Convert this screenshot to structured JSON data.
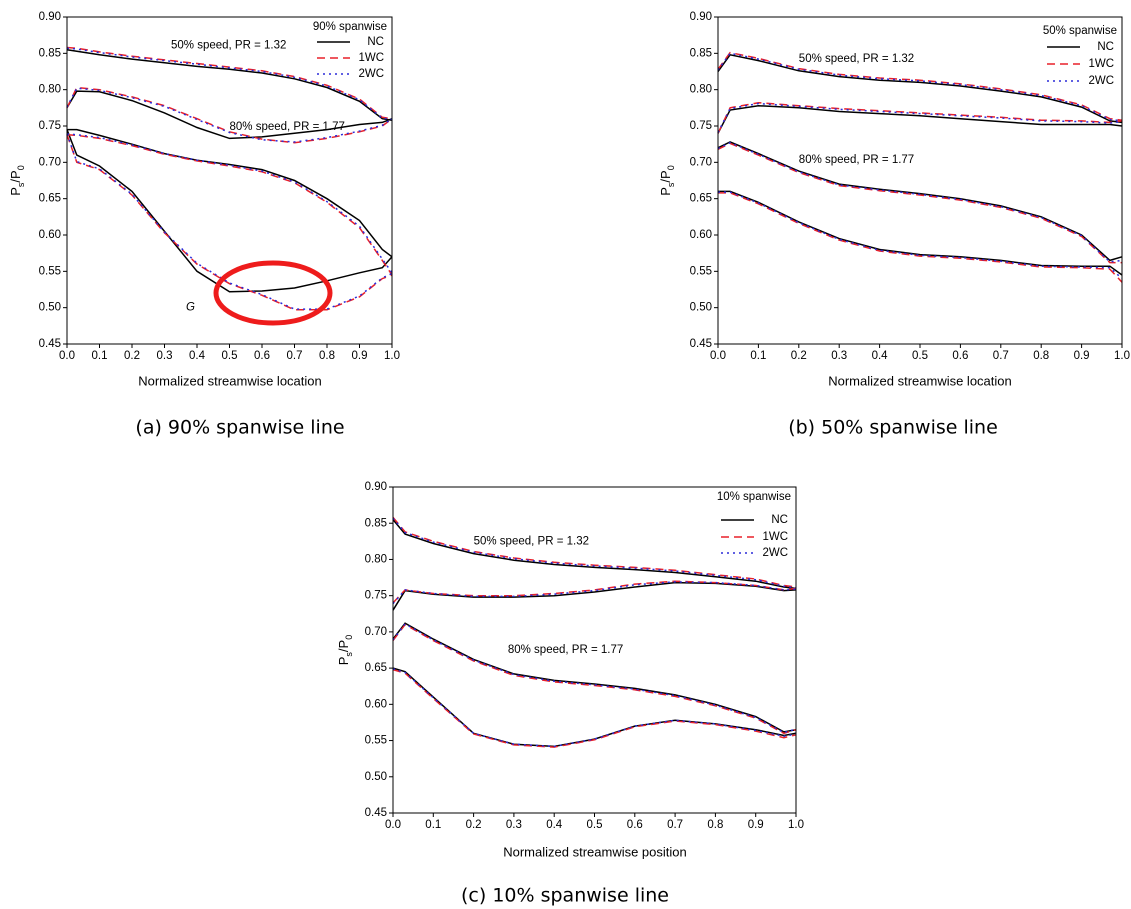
{
  "chart_data": [
    {
      "type": "line",
      "legend_title": "90% spanwise",
      "caption": "(a) 90% spanwise line",
      "xlabel": "Normalized streamwise location",
      "ylabel": [
        "P",
        "s",
        "/P",
        "0"
      ],
      "annotations": [
        "50% speed, PR = 1.32",
        "80% speed, PR = 1.77"
      ],
      "marker_label": "G",
      "xlim": [
        0,
        1
      ],
      "ylim": [
        0.45,
        0.9
      ],
      "xticks": [
        {
          "value": 0,
          "label": "0.0"
        },
        {
          "value": 0.1,
          "label": "0.1"
        },
        {
          "value": 0.2,
          "label": "0.2"
        },
        {
          "value": 0.3,
          "label": "0.3"
        },
        {
          "value": 0.4,
          "label": "0.4"
        },
        {
          "value": 0.5,
          "label": "0.5"
        },
        {
          "value": 0.6,
          "label": "0.6"
        },
        {
          "value": 0.7,
          "label": "0.7"
        },
        {
          "value": 0.8,
          "label": "0.8"
        },
        {
          "value": 0.9,
          "label": "0.9"
        },
        {
          "value": 1,
          "label": "1.0"
        }
      ],
      "yticks": [
        {
          "value": 0.45,
          "label": "0.45"
        },
        {
          "value": 0.5,
          "label": "0.50"
        },
        {
          "value": 0.55,
          "label": "0.55"
        },
        {
          "value": 0.6,
          "label": "0.60"
        },
        {
          "value": 0.65,
          "label": "0.65"
        },
        {
          "value": 0.7,
          "label": "0.70"
        },
        {
          "value": 0.75,
          "label": "0.75"
        },
        {
          "value": 0.8,
          "label": "0.80"
        },
        {
          "value": 0.85,
          "label": "0.85"
        },
        {
          "value": 0.9,
          "label": "0.90"
        }
      ],
      "x": [
        0,
        0.03,
        0.1,
        0.2,
        0.3,
        0.4,
        0.5,
        0.6,
        0.7,
        0.8,
        0.9,
        0.97,
        1
      ],
      "series": [
        {
          "name": "NC",
          "color": "#000000",
          "dash": "solid",
          "curves": [
            [
              0.855,
              0.853,
              0.848,
              0.842,
              0.837,
              0.832,
              0.828,
              0.823,
              0.815,
              0.803,
              0.784,
              0.76,
              0.758
            ],
            [
              0.775,
              0.798,
              0.797,
              0.785,
              0.768,
              0.748,
              0.733,
              0.735,
              0.74,
              0.745,
              0.752,
              0.755,
              0.76
            ],
            [
              0.745,
              0.745,
              0.737,
              0.725,
              0.712,
              0.703,
              0.697,
              0.69,
              0.675,
              0.65,
              0.62,
              0.58,
              0.57
            ],
            [
              0.745,
              0.71,
              0.695,
              0.66,
              0.605,
              0.55,
              0.522,
              0.523,
              0.527,
              0.537,
              0.548,
              0.555,
              0.57
            ]
          ]
        },
        {
          "name": "1WC",
          "color": "#e8202a",
          "dash": "dashed",
          "curves": [
            [
              0.858,
              0.857,
              0.852,
              0.846,
              0.841,
              0.836,
              0.831,
              0.826,
              0.818,
              0.806,
              0.787,
              0.762,
              0.76
            ],
            [
              0.775,
              0.803,
              0.8,
              0.79,
              0.778,
              0.76,
              0.742,
              0.732,
              0.727,
              0.733,
              0.742,
              0.75,
              0.76
            ],
            [
              0.738,
              0.737,
              0.733,
              0.723,
              0.711,
              0.702,
              0.695,
              0.687,
              0.672,
              0.645,
              0.61,
              0.565,
              0.545
            ],
            [
              0.738,
              0.7,
              0.69,
              0.655,
              0.603,
              0.56,
              0.533,
              0.517,
              0.497,
              0.497,
              0.515,
              0.54,
              0.545
            ]
          ]
        },
        {
          "name": "2WC",
          "color": "#2b2bd9",
          "dash": "dotted",
          "curves": [
            [
              0.857,
              0.856,
              0.851,
              0.845,
              0.84,
              0.835,
              0.83,
              0.825,
              0.817,
              0.805,
              0.786,
              0.761,
              0.759
            ],
            [
              0.776,
              0.802,
              0.799,
              0.789,
              0.777,
              0.759,
              0.741,
              0.731,
              0.728,
              0.734,
              0.743,
              0.751,
              0.76
            ],
            [
              0.739,
              0.738,
              0.734,
              0.724,
              0.712,
              0.703,
              0.696,
              0.688,
              0.673,
              0.646,
              0.612,
              0.567,
              0.548
            ],
            [
              0.739,
              0.701,
              0.691,
              0.656,
              0.604,
              0.561,
              0.534,
              0.518,
              0.498,
              0.498,
              0.516,
              0.541,
              0.547
            ]
          ]
        }
      ]
    },
    {
      "type": "line",
      "legend_title": "50% spanwise",
      "caption": "(b) 50% spanwise line",
      "xlabel": "Normalized streamwise location",
      "ylabel": [
        "P",
        "s",
        "/P",
        "0"
      ],
      "annotations": [
        "50% speed, PR = 1.32",
        "80% speed, PR = 1.77"
      ],
      "xlim": [
        0,
        1
      ],
      "ylim": [
        0.45,
        0.9
      ],
      "xticks": [
        {
          "value": 0,
          "label": "0.0"
        },
        {
          "value": 0.1,
          "label": "0.1"
        },
        {
          "value": 0.2,
          "label": "0.2"
        },
        {
          "value": 0.3,
          "label": "0.3"
        },
        {
          "value": 0.4,
          "label": "0.4"
        },
        {
          "value": 0.5,
          "label": "0.5"
        },
        {
          "value": 0.6,
          "label": "0.6"
        },
        {
          "value": 0.7,
          "label": "0.7"
        },
        {
          "value": 0.8,
          "label": "0.8"
        },
        {
          "value": 0.9,
          "label": "0.9"
        },
        {
          "value": 1,
          "label": "1.0"
        }
      ],
      "yticks": [
        {
          "value": 0.45,
          "label": "0.45"
        },
        {
          "value": 0.5,
          "label": "0.50"
        },
        {
          "value": 0.55,
          "label": "0.55"
        },
        {
          "value": 0.6,
          "label": "0.60"
        },
        {
          "value": 0.65,
          "label": "0.65"
        },
        {
          "value": 0.7,
          "label": "0.70"
        },
        {
          "value": 0.75,
          "label": "0.75"
        },
        {
          "value": 0.8,
          "label": "0.80"
        },
        {
          "value": 0.85,
          "label": "0.85"
        },
        {
          "value": 0.9,
          "label": "0.90"
        }
      ],
      "x": [
        0,
        0.03,
        0.1,
        0.2,
        0.3,
        0.4,
        0.5,
        0.6,
        0.7,
        0.8,
        0.9,
        0.97,
        1
      ],
      "series": [
        {
          "name": "NC",
          "color": "#000000",
          "dash": "solid",
          "curves": [
            [
              0.825,
              0.848,
              0.84,
              0.826,
              0.818,
              0.813,
              0.81,
              0.805,
              0.798,
              0.79,
              0.776,
              0.757,
              0.755
            ],
            [
              0.74,
              0.772,
              0.778,
              0.775,
              0.77,
              0.767,
              0.764,
              0.76,
              0.756,
              0.752,
              0.752,
              0.752,
              0.75
            ],
            [
              0.72,
              0.728,
              0.712,
              0.688,
              0.67,
              0.663,
              0.657,
              0.65,
              0.64,
              0.625,
              0.6,
              0.565,
              0.57
            ],
            [
              0.66,
              0.66,
              0.645,
              0.618,
              0.595,
              0.58,
              0.573,
              0.57,
              0.565,
              0.558,
              0.557,
              0.557,
              0.545
            ]
          ]
        },
        {
          "name": "1WC",
          "color": "#e8202a",
          "dash": "dashed",
          "curves": [
            [
              0.828,
              0.851,
              0.843,
              0.829,
              0.821,
              0.816,
              0.813,
              0.808,
              0.801,
              0.793,
              0.779,
              0.76,
              0.758
            ],
            [
              0.74,
              0.775,
              0.782,
              0.778,
              0.774,
              0.771,
              0.768,
              0.765,
              0.762,
              0.758,
              0.757,
              0.755,
              0.757
            ],
            [
              0.718,
              0.726,
              0.71,
              0.686,
              0.668,
              0.661,
              0.655,
              0.648,
              0.638,
              0.623,
              0.598,
              0.562,
              0.562
            ],
            [
              0.658,
              0.658,
              0.643,
              0.616,
              0.593,
              0.578,
              0.571,
              0.568,
              0.563,
              0.556,
              0.555,
              0.553,
              0.535
            ]
          ]
        },
        {
          "name": "2WC",
          "color": "#2b2bd9",
          "dash": "dotted",
          "curves": [
            [
              0.827,
              0.85,
              0.842,
              0.828,
              0.82,
              0.815,
              0.812,
              0.807,
              0.8,
              0.792,
              0.778,
              0.759,
              0.757
            ],
            [
              0.741,
              0.774,
              0.781,
              0.777,
              0.773,
              0.77,
              0.767,
              0.764,
              0.761,
              0.757,
              0.756,
              0.754,
              0.756
            ],
            [
              0.719,
              0.727,
              0.711,
              0.687,
              0.669,
              0.662,
              0.656,
              0.649,
              0.639,
              0.624,
              0.599,
              0.563,
              0.565
            ],
            [
              0.659,
              0.659,
              0.644,
              0.617,
              0.594,
              0.579,
              0.572,
              0.569,
              0.564,
              0.557,
              0.556,
              0.555,
              0.54
            ]
          ]
        }
      ]
    },
    {
      "type": "line",
      "legend_title": "10% spanwise",
      "caption": "(c) 10% spanwise line",
      "xlabel": "Normalized streamwise position",
      "ylabel": [
        "P",
        "s",
        "/P",
        "0"
      ],
      "annotations": [
        "50% speed, PR = 1.32",
        "80% speed, PR = 1.77"
      ],
      "xlim": [
        0,
        1
      ],
      "ylim": [
        0.45,
        0.9
      ],
      "xticks": [
        {
          "value": 0,
          "label": "0.0"
        },
        {
          "value": 0.1,
          "label": "0.1"
        },
        {
          "value": 0.2,
          "label": "0.2"
        },
        {
          "value": 0.3,
          "label": "0.3"
        },
        {
          "value": 0.4,
          "label": "0.4"
        },
        {
          "value": 0.5,
          "label": "0.5"
        },
        {
          "value": 0.6,
          "label": "0.6"
        },
        {
          "value": 0.7,
          "label": "0.7"
        },
        {
          "value": 0.8,
          "label": "0.8"
        },
        {
          "value": 0.9,
          "label": "0.9"
        },
        {
          "value": 1,
          "label": "1.0"
        }
      ],
      "yticks": [
        {
          "value": 0.45,
          "label": "0.45"
        },
        {
          "value": 0.5,
          "label": "0.50"
        },
        {
          "value": 0.55,
          "label": "0.55"
        },
        {
          "value": 0.6,
          "label": "0.60"
        },
        {
          "value": 0.65,
          "label": "0.65"
        },
        {
          "value": 0.7,
          "label": "0.70"
        },
        {
          "value": 0.75,
          "label": "0.75"
        },
        {
          "value": 0.8,
          "label": "0.80"
        },
        {
          "value": 0.85,
          "label": "0.85"
        },
        {
          "value": 0.9,
          "label": "0.90"
        }
      ],
      "x": [
        0,
        0.03,
        0.1,
        0.2,
        0.3,
        0.4,
        0.5,
        0.6,
        0.7,
        0.8,
        0.9,
        0.97,
        1
      ],
      "series": [
        {
          "name": "NC",
          "color": "#000000",
          "dash": "solid",
          "curves": [
            [
              0.855,
              0.835,
              0.822,
              0.808,
              0.799,
              0.793,
              0.789,
              0.786,
              0.782,
              0.776,
              0.77,
              0.762,
              0.76
            ],
            [
              0.73,
              0.757,
              0.752,
              0.748,
              0.748,
              0.75,
              0.755,
              0.762,
              0.768,
              0.767,
              0.763,
              0.757,
              0.758
            ],
            [
              0.69,
              0.712,
              0.69,
              0.662,
              0.642,
              0.633,
              0.628,
              0.622,
              0.613,
              0.6,
              0.583,
              0.562,
              0.565
            ],
            [
              0.65,
              0.645,
              0.61,
              0.56,
              0.545,
              0.542,
              0.552,
              0.57,
              0.578,
              0.573,
              0.565,
              0.557,
              0.56
            ]
          ]
        },
        {
          "name": "1WC",
          "color": "#e8202a",
          "dash": "dashed",
          "curves": [
            [
              0.858,
              0.838,
              0.825,
              0.811,
              0.802,
              0.796,
              0.792,
              0.789,
              0.785,
              0.779,
              0.773,
              0.764,
              0.762
            ],
            [
              0.74,
              0.758,
              0.753,
              0.75,
              0.75,
              0.753,
              0.758,
              0.766,
              0.77,
              0.768,
              0.764,
              0.758,
              0.76
            ],
            [
              0.688,
              0.71,
              0.688,
              0.66,
              0.64,
              0.631,
              0.626,
              0.62,
              0.611,
              0.598,
              0.581,
              0.56,
              0.565
            ],
            [
              0.648,
              0.643,
              0.608,
              0.559,
              0.544,
              0.541,
              0.551,
              0.569,
              0.577,
              0.572,
              0.563,
              0.554,
              0.558
            ]
          ]
        },
        {
          "name": "2WC",
          "color": "#2b2bd9",
          "dash": "dotted",
          "curves": [
            [
              0.857,
              0.837,
              0.824,
              0.81,
              0.801,
              0.795,
              0.791,
              0.788,
              0.784,
              0.778,
              0.772,
              0.763,
              0.761
            ],
            [
              0.739,
              0.758,
              0.753,
              0.749,
              0.749,
              0.752,
              0.757,
              0.765,
              0.769,
              0.768,
              0.764,
              0.758,
              0.759
            ],
            [
              0.689,
              0.711,
              0.689,
              0.661,
              0.641,
              0.632,
              0.627,
              0.621,
              0.612,
              0.599,
              0.582,
              0.561,
              0.566
            ],
            [
              0.649,
              0.644,
              0.609,
              0.56,
              0.545,
              0.542,
              0.552,
              0.57,
              0.578,
              0.573,
              0.564,
              0.556,
              0.559
            ]
          ]
        }
      ]
    }
  ]
}
